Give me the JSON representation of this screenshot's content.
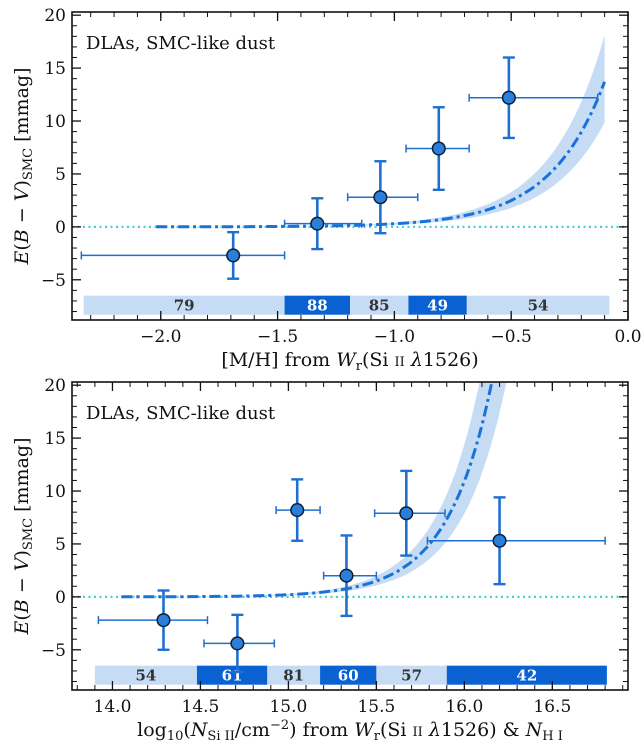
{
  "chart_data": [
    {
      "type": "scatter",
      "title": "DLAs, SMC-like dust",
      "xlabel": "[M/H] from Wr(Si II λ1526)",
      "ylabel": "E(B − V)SMC [mmag]",
      "xlim": [
        -2.38,
        0.0
      ],
      "ylim": [
        -8.8,
        20.3
      ],
      "xticks": [
        -2.0,
        -1.5,
        -1.0,
        -0.5,
        0.0
      ],
      "xtick_labels": [
        "−2.0",
        "−1.5",
        "−1.0",
        "−0.5",
        "0.0"
      ],
      "yticks": [
        -5,
        0,
        5,
        10,
        15,
        20
      ],
      "ytick_labels": [
        "−5",
        "0",
        "5",
        "10",
        "15",
        "20"
      ],
      "zero_line": 0,
      "points": [
        {
          "x": -1.69,
          "y": -2.7,
          "xerr": [
            0.65,
            0.22
          ],
          "yerr": [
            2.2,
            2.2
          ]
        },
        {
          "x": -1.33,
          "y": 0.3,
          "xerr": [
            0.14,
            0.19
          ],
          "yerr": [
            2.4,
            2.4
          ]
        },
        {
          "x": -1.06,
          "y": 2.8,
          "xerr": [
            0.14,
            0.16
          ],
          "yerr": [
            3.4,
            3.4
          ]
        },
        {
          "x": -0.81,
          "y": 7.4,
          "xerr": [
            0.14,
            0.13
          ],
          "yerr": [
            3.9,
            3.9
          ]
        },
        {
          "x": -0.51,
          "y": 12.2,
          "xerr": [
            0.17,
            0.38
          ],
          "yerr": [
            3.8,
            3.8
          ]
        }
      ],
      "model": {
        "style": "dash-dot",
        "x_range": [
          -2.02,
          -0.1
        ],
        "y_at_zero": 21.0,
        "scale_dex": 0.54
      },
      "bins": [
        {
          "x0": -2.33,
          "x1": -1.47,
          "count": "79",
          "style": "light"
        },
        {
          "x0": -1.47,
          "x1": -1.19,
          "count": "88",
          "style": "dark"
        },
        {
          "x0": -1.19,
          "x1": -0.94,
          "count": "85",
          "style": "light"
        },
        {
          "x0": -0.94,
          "x1": -0.69,
          "count": "49",
          "style": "dark"
        },
        {
          "x0": -0.69,
          "x1": -0.08,
          "count": "54",
          "style": "light"
        }
      ],
      "colors": {
        "points": "#2b7fd8",
        "errorbars": "#1f6fd0",
        "model": "#1872d9",
        "band": "#c6dcf5",
        "zero": "#3fd6d0",
        "bin_light": "#c6dcf5",
        "bin_dark": "#0a62d2"
      },
      "grid": false
    },
    {
      "type": "scatter",
      "title": "DLAs, SMC-like dust",
      "xlabel": "log10(N Si II / cm−2) from Wr(Si II λ1526) & N H I",
      "ylabel": "E(B − V)SMC [mmag]",
      "xlim": [
        13.77,
        16.93
      ],
      "ylim": [
        -8.8,
        20.3
      ],
      "xticks": [
        14.0,
        14.5,
        15.0,
        15.5,
        16.0,
        16.5
      ],
      "xtick_labels": [
        "14.0",
        "14.5",
        "15.0",
        "15.5",
        "16.0",
        "16.5"
      ],
      "yticks": [
        -5,
        0,
        5,
        10,
        15,
        20
      ],
      "ytick_labels": [
        "−5",
        "0",
        "5",
        "10",
        "15",
        "20"
      ],
      "zero_line": 0,
      "points": [
        {
          "x": 14.29,
          "y": -2.2,
          "xerr": [
            0.37,
            0.25
          ],
          "yerr": [
            2.8,
            2.8
          ]
        },
        {
          "x": 14.71,
          "y": -4.4,
          "xerr": [
            0.19,
            0.21
          ],
          "yerr": [
            2.7,
            2.7
          ]
        },
        {
          "x": 15.05,
          "y": 8.2,
          "xerr": [
            0.12,
            0.13
          ],
          "yerr": [
            2.9,
            2.9
          ]
        },
        {
          "x": 15.33,
          "y": 2.0,
          "xerr": [
            0.13,
            0.17
          ],
          "yerr": [
            3.8,
            3.8
          ]
        },
        {
          "x": 15.67,
          "y": 7.9,
          "xerr": [
            0.18,
            0.22
          ],
          "yerr": [
            4.0,
            4.0
          ]
        },
        {
          "x": 16.2,
          "y": 5.3,
          "xerr": [
            0.41,
            0.6
          ],
          "yerr": [
            4.1,
            4.1
          ]
        }
      ],
      "model": {
        "style": "dash-dot",
        "x_range": [
          14.05,
          16.73
        ],
        "y_at_ref": 1.5,
        "x_ref": 15.5,
        "scale_dex": 0.58
      },
      "bins": [
        {
          "x0": 13.9,
          "x1": 14.48,
          "count": "54",
          "style": "light"
        },
        {
          "x0": 14.48,
          "x1": 14.88,
          "count": "61",
          "style": "dark"
        },
        {
          "x0": 14.88,
          "x1": 15.18,
          "count": "81",
          "style": "light"
        },
        {
          "x0": 15.18,
          "x1": 15.5,
          "count": "60",
          "style": "dark"
        },
        {
          "x0": 15.5,
          "x1": 15.9,
          "count": "57",
          "style": "light"
        },
        {
          "x0": 15.9,
          "x1": 16.81,
          "count": "42",
          "style": "dark"
        }
      ],
      "colors": {
        "points": "#2b7fd8",
        "errorbars": "#1f6fd0",
        "model": "#1872d9",
        "band": "#c6dcf5",
        "zero": "#3fd6d0",
        "bin_light": "#c6dcf5",
        "bin_dark": "#0a62d2"
      },
      "grid": false
    }
  ]
}
